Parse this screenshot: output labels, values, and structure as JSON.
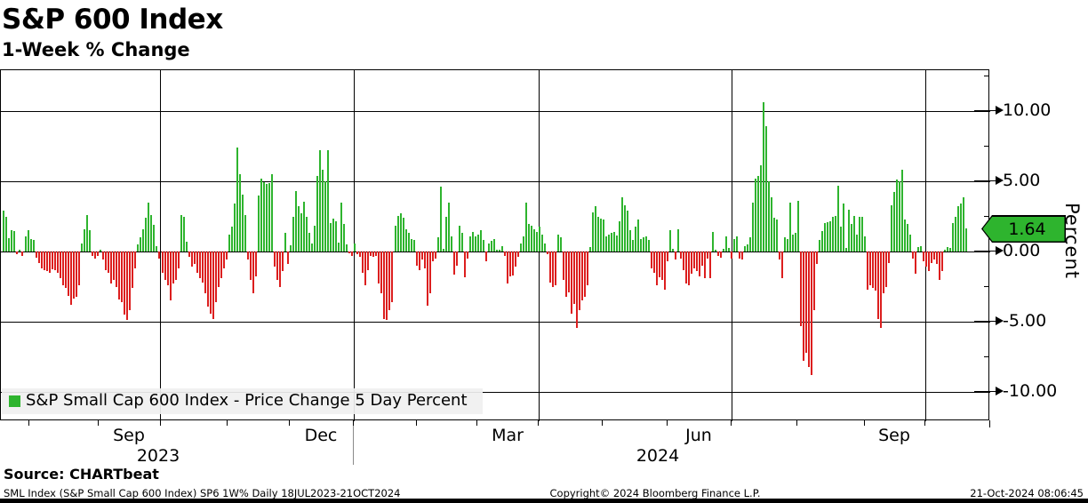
{
  "header": {
    "title": "S&P 600 Index",
    "subtitle": "1-Week % Change"
  },
  "legend": {
    "label": "S&P Small Cap 600 Index - Price Change 5 Day Percent"
  },
  "source_line": "Source: CHARTbeat",
  "footer": {
    "left": "SML Index (S&P Small Cap 600 Index) SP6 1W%  Daily 18JUL2023-21OCT2024",
    "center": "Copyright© 2024 Bloomberg Finance L.P.",
    "right": "21-Oct-2024 08:06:45"
  },
  "y_axis": {
    "label": "Percent",
    "major_ticks": [
      {
        "value": 10,
        "label": "10.00"
      },
      {
        "value": 5,
        "label": "5.00"
      },
      {
        "value": 0,
        "label": "0.00"
      },
      {
        "value": -5,
        "label": "-5.00"
      },
      {
        "value": -10,
        "label": "-10.00"
      }
    ],
    "minor_tick_values": [
      12.5,
      7.5,
      2.5,
      -2.5,
      -7.5
    ],
    "last_value_badge": "1.64"
  },
  "x_axis": {
    "month_labels": [
      {
        "label": "Sep",
        "x": 145
      },
      {
        "label": "Dec",
        "x": 361
      },
      {
        "label": "Mar",
        "x": 571
      },
      {
        "label": "Jun",
        "x": 786
      },
      {
        "label": "Sep",
        "x": 1006
      }
    ],
    "year_labels": [
      {
        "label": "2023",
        "x": 178
      },
      {
        "label": "2024",
        "x": 740
      }
    ],
    "month_tick_x": [
      32,
      110,
      180,
      255,
      325,
      397,
      468,
      536,
      605,
      677,
      750,
      822,
      896,
      972,
      1040
    ],
    "quarter_grid_x": [
      179,
      397,
      605,
      822,
      1040
    ],
    "year_separator_x": 397
  },
  "chart_data": {
    "type": "bar",
    "title": "S&P 600 Index",
    "subtitle": "1-Week % Change",
    "series_name": "S&P Small Cap 600 Index - Price Change 5 Day Percent",
    "frequency": "Daily",
    "date_range": "18JUL2023-21OCT2024",
    "ylabel": "Percent",
    "ylim": [
      -12.5,
      12.5
    ],
    "y_ticks": [
      10,
      5,
      0,
      -5,
      -10
    ],
    "grid": true,
    "legend_position": "bottom-left",
    "last_value": 1.64,
    "colors": {
      "positive": "#2eb42e",
      "negative": "#dc1e1e",
      "badge": "#2eb42e",
      "legend_bg": "#f0f0f0"
    },
    "bars_format": "[x_px_from_Jul18_2023_to_Oct21_2024, percent_change]",
    "bars": [
      [
        2,
        2.9
      ],
      [
        5,
        2.5
      ],
      [
        8,
        0.95
      ],
      [
        11,
        1.55
      ],
      [
        14,
        1.45
      ],
      [
        17,
        -0.2
      ],
      [
        20,
        0.15
      ],
      [
        23,
        -0.3
      ],
      [
        27,
        1.1
      ],
      [
        30,
        1.5
      ],
      [
        33,
        0.9
      ],
      [
        36,
        0.85
      ],
      [
        39,
        -0.45
      ],
      [
        42,
        -0.8
      ],
      [
        45,
        -1.2
      ],
      [
        48,
        -1.35
      ],
      [
        51,
        -1.4
      ],
      [
        54,
        -1.5
      ],
      [
        57,
        -1.25
      ],
      [
        60,
        -1.35
      ],
      [
        63,
        -1.55
      ],
      [
        66,
        -1.9
      ],
      [
        69,
        -2.4
      ],
      [
        72,
        -2.6
      ],
      [
        75,
        -3.15
      ],
      [
        78,
        -3.8
      ],
      [
        81,
        -3.35
      ],
      [
        84,
        -3.2
      ],
      [
        87,
        -2.4
      ],
      [
        90,
        0.6
      ],
      [
        93,
        1.6
      ],
      [
        96,
        2.6
      ],
      [
        99,
        1.5
      ],
      [
        102,
        -0.3
      ],
      [
        105,
        -0.5
      ],
      [
        108,
        -0.3
      ],
      [
        111,
        0.1
      ],
      [
        114,
        -0.6
      ],
      [
        117,
        -1.3
      ],
      [
        120,
        -1.5
      ],
      [
        123,
        -2.3
      ],
      [
        126,
        -2.0
      ],
      [
        129,
        -2.5
      ],
      [
        132,
        -3.4
      ],
      [
        135,
        -3.6
      ],
      [
        138,
        -4.5
      ],
      [
        141,
        -4.9
      ],
      [
        144,
        -4.2
      ],
      [
        147,
        -2.6
      ],
      [
        150,
        -1.2
      ],
      [
        153,
        0.5
      ],
      [
        156,
        1.0
      ],
      [
        159,
        1.6
      ],
      [
        162,
        2.4
      ],
      [
        165,
        3.5
      ],
      [
        168,
        2.6
      ],
      [
        171,
        1.9
      ],
      [
        174,
        0.4
      ],
      [
        177,
        -0.5
      ],
      [
        181,
        -1.55
      ],
      [
        184,
        -2.0
      ],
      [
        187,
        -2.4
      ],
      [
        190,
        -3.5
      ],
      [
        193,
        -2.3
      ],
      [
        196,
        -2.0
      ],
      [
        199,
        -1.2
      ],
      [
        202,
        2.6
      ],
      [
        205,
        2.5
      ],
      [
        208,
        0.7
      ],
      [
        211,
        -0.4
      ],
      [
        214,
        -1.1
      ],
      [
        217,
        -0.9
      ],
      [
        220,
        -1.5
      ],
      [
        223,
        -1.9
      ],
      [
        226,
        -2.2
      ],
      [
        229,
        -3.0
      ],
      [
        232,
        -3.9
      ],
      [
        235,
        -4.4
      ],
      [
        238,
        -4.8
      ],
      [
        241,
        -3.6
      ],
      [
        244,
        -2.5
      ],
      [
        247,
        -1.9
      ],
      [
        250,
        -1.2
      ],
      [
        253,
        -0.6
      ],
      [
        256,
        1.2
      ],
      [
        259,
        1.8
      ],
      [
        262,
        3.4
      ],
      [
        265,
        7.4
      ],
      [
        268,
        5.5
      ],
      [
        271,
        4.05
      ],
      [
        274,
        2.6
      ],
      [
        277,
        -0.6
      ],
      [
        280,
        -2.0
      ],
      [
        283,
        -3.0
      ],
      [
        286,
        -1.8
      ],
      [
        289,
        4.0
      ],
      [
        292,
        5.2
      ],
      [
        295,
        4.95
      ],
      [
        298,
        4.8
      ],
      [
        301,
        4.9
      ],
      [
        304,
        5.5
      ],
      [
        307,
        -1.1
      ],
      [
        310,
        -2.0
      ],
      [
        313,
        -2.5
      ],
      [
        316,
        -1.4
      ],
      [
        319,
        1.35
      ],
      [
        322,
        -0.9
      ],
      [
        325,
        0.45
      ],
      [
        328,
        2.5
      ],
      [
        331,
        4.3
      ],
      [
        334,
        3.2
      ],
      [
        337,
        2.7
      ],
      [
        340,
        3.55
      ],
      [
        343,
        2.5
      ],
      [
        346,
        1.3
      ],
      [
        349,
        0.6
      ],
      [
        352,
        1.85
      ],
      [
        355,
        5.4
      ],
      [
        358,
        7.2
      ],
      [
        361,
        5.85
      ],
      [
        364,
        5.0
      ],
      [
        367,
        7.2
      ],
      [
        370,
        2.05
      ],
      [
        373,
        2.35
      ],
      [
        376,
        2.15
      ],
      [
        379,
        0.65
      ],
      [
        382,
        3.45
      ],
      [
        385,
        1.95
      ],
      [
        388,
        0.5
      ],
      [
        391,
        -0.15
      ],
      [
        394,
        -0.3
      ],
      [
        397,
        0.55
      ],
      [
        400,
        -0.2
      ],
      [
        403,
        -0.4
      ],
      [
        406,
        -1.5
      ],
      [
        409,
        -2.4
      ],
      [
        412,
        -1.3
      ],
      [
        415,
        -0.3
      ],
      [
        418,
        -0.35
      ],
      [
        421,
        -0.3
      ],
      [
        424,
        -2.3
      ],
      [
        427,
        -3.0
      ],
      [
        430,
        -4.8
      ],
      [
        433,
        -4.9
      ],
      [
        436,
        -4.2
      ],
      [
        439,
        -3.6
      ],
      [
        443,
        1.85
      ],
      [
        446,
        2.55
      ],
      [
        449,
        2.7
      ],
      [
        452,
        2.4
      ],
      [
        455,
        1.6
      ],
      [
        458,
        1.3
      ],
      [
        461,
        0.9
      ],
      [
        464,
        0.8
      ],
      [
        467,
        -1.0
      ],
      [
        470,
        -1.3
      ],
      [
        473,
        -0.6
      ],
      [
        476,
        -1.2
      ],
      [
        479,
        -3.85
      ],
      [
        482,
        -3.0
      ],
      [
        485,
        -0.7
      ],
      [
        488,
        -0.5
      ],
      [
        491,
        1.0
      ],
      [
        494,
        4.6
      ],
      [
        497,
        0.2
      ],
      [
        500,
        2.45
      ],
      [
        503,
        3.5
      ],
      [
        506,
        1.05
      ],
      [
        509,
        -1.65
      ],
      [
        512,
        -1.0
      ],
      [
        515,
        1.85
      ],
      [
        518,
        1.35
      ],
      [
        521,
        -1.85
      ],
      [
        524,
        -0.5
      ],
      [
        527,
        1.1
      ],
      [
        530,
        1.4
      ],
      [
        533,
        1.05
      ],
      [
        536,
        1.2
      ],
      [
        539,
        1.5
      ],
      [
        542,
        0.8
      ],
      [
        545,
        -0.7
      ],
      [
        548,
        0.55
      ],
      [
        551,
        0.75
      ],
      [
        554,
        0.9
      ],
      [
        557,
        0.15
      ],
      [
        560,
        0.1
      ],
      [
        563,
        0.4
      ],
      [
        566,
        -0.3
      ],
      [
        569,
        -2.3
      ],
      [
        572,
        -1.75
      ],
      [
        575,
        -1.7
      ],
      [
        578,
        -1.1
      ],
      [
        581,
        -0.4
      ],
      [
        584,
        0.55
      ],
      [
        587,
        1.1
      ],
      [
        590,
        3.5
      ],
      [
        593,
        1.95
      ],
      [
        596,
        1.85
      ],
      [
        599,
        1.6
      ],
      [
        602,
        1.4
      ],
      [
        605,
        1.75
      ],
      [
        608,
        1.2
      ],
      [
        611,
        0.6
      ],
      [
        614,
        -0.2
      ],
      [
        617,
        -2.2
      ],
      [
        620,
        -2.5
      ],
      [
        623,
        -2.4
      ],
      [
        626,
        1.2
      ],
      [
        629,
        1.0
      ],
      [
        632,
        -2.0
      ],
      [
        635,
        -3.2
      ],
      [
        638,
        -2.9
      ],
      [
        641,
        -4.4
      ],
      [
        644,
        -3.75
      ],
      [
        647,
        -5.45
      ],
      [
        650,
        -4.2
      ],
      [
        653,
        -3.45
      ],
      [
        656,
        -3.2
      ],
      [
        659,
        -2.4
      ],
      [
        662,
        0.3
      ],
      [
        665,
        2.8
      ],
      [
        668,
        3.2
      ],
      [
        671,
        2.45
      ],
      [
        674,
        2.35
      ],
      [
        677,
        2.25
      ],
      [
        680,
        1.1
      ],
      [
        683,
        1.2
      ],
      [
        686,
        1.3
      ],
      [
        689,
        1.4
      ],
      [
        692,
        1.15
      ],
      [
        695,
        2.15
      ],
      [
        698,
        3.85
      ],
      [
        701,
        3.3
      ],
      [
        704,
        2.9
      ],
      [
        707,
        1.5
      ],
      [
        710,
        0.8
      ],
      [
        713,
        1.75
      ],
      [
        716,
        2.25
      ],
      [
        719,
        0.9
      ],
      [
        722,
        1.0
      ],
      [
        725,
        1.1
      ],
      [
        728,
        0.8
      ],
      [
        731,
        -1.2
      ],
      [
        734,
        -1.55
      ],
      [
        737,
        -2.4
      ],
      [
        740,
        -1.85
      ],
      [
        743,
        -2.0
      ],
      [
        746,
        -2.7
      ],
      [
        749,
        -0.7
      ],
      [
        752,
        1.5
      ],
      [
        755,
        0.2
      ],
      [
        758,
        -0.6
      ],
      [
        761,
        1.6
      ],
      [
        764,
        -0.5
      ],
      [
        767,
        -1.3
      ],
      [
        770,
        -2.3
      ],
      [
        773,
        -2.4
      ],
      [
        776,
        -1.6
      ],
      [
        779,
        -1.2
      ],
      [
        782,
        -1.4
      ],
      [
        785,
        -1.8
      ],
      [
        788,
        -1.0
      ],
      [
        791,
        -1.9
      ],
      [
        794,
        -0.5
      ],
      [
        797,
        -1.9
      ],
      [
        800,
        1.4
      ],
      [
        803,
        0.1
      ],
      [
        806,
        -0.3
      ],
      [
        809,
        -0.45
      ],
      [
        812,
        0.2
      ],
      [
        815,
        1.1
      ],
      [
        818,
        0.25
      ],
      [
        821,
        -0.5
      ],
      [
        824,
        0.9
      ],
      [
        827,
        1.1
      ],
      [
        830,
        -0.5
      ],
      [
        833,
        -0.6
      ],
      [
        836,
        0.4
      ],
      [
        839,
        0.5
      ],
      [
        842,
        1.0
      ],
      [
        845,
        3.5
      ],
      [
        848,
        5.2
      ],
      [
        851,
        5.4
      ],
      [
        854,
        6.15
      ],
      [
        857,
        10.65
      ],
      [
        860,
        8.9
      ],
      [
        863,
        5.0
      ],
      [
        866,
        3.85
      ],
      [
        869,
        2.4
      ],
      [
        872,
        2.25
      ],
      [
        875,
        -0.6
      ],
      [
        878,
        -1.9
      ],
      [
        881,
        1.0
      ],
      [
        884,
        0.9
      ],
      [
        887,
        3.5
      ],
      [
        890,
        1.2
      ],
      [
        893,
        1.35
      ],
      [
        896,
        3.6
      ],
      [
        899,
        -5.3
      ],
      [
        902,
        -7.8
      ],
      [
        905,
        -7.2
      ],
      [
        908,
        -8.2
      ],
      [
        911,
        -8.8
      ],
      [
        914,
        -4.2
      ],
      [
        917,
        -0.9
      ],
      [
        920,
        0.8
      ],
      [
        923,
        1.45
      ],
      [
        926,
        2.05
      ],
      [
        929,
        2.1
      ],
      [
        932,
        2.15
      ],
      [
        935,
        2.45
      ],
      [
        938,
        2.55
      ],
      [
        941,
        4.7
      ],
      [
        944,
        1.75
      ],
      [
        947,
        3.4
      ],
      [
        950,
        0.25
      ],
      [
        953,
        3.0
      ],
      [
        956,
        1.95
      ],
      [
        959,
        2.55
      ],
      [
        962,
        1.2
      ],
      [
        965,
        2.45
      ],
      [
        968,
        2.5
      ],
      [
        971,
        1.1
      ],
      [
        974,
        -2.7
      ],
      [
        977,
        -2.4
      ],
      [
        980,
        -2.6
      ],
      [
        983,
        -2.8
      ],
      [
        986,
        -4.8
      ],
      [
        989,
        -5.45
      ],
      [
        992,
        -3.0
      ],
      [
        995,
        -2.5
      ],
      [
        998,
        -0.8
      ],
      [
        1001,
        3.3
      ],
      [
        1004,
        4.25
      ],
      [
        1007,
        5.15
      ],
      [
        1010,
        5.0
      ],
      [
        1013,
        5.85
      ],
      [
        1016,
        2.25
      ],
      [
        1019,
        1.95
      ],
      [
        1022,
        1.2
      ],
      [
        1025,
        -0.5
      ],
      [
        1028,
        -1.6
      ],
      [
        1031,
        0.3
      ],
      [
        1034,
        0.4
      ],
      [
        1037,
        -0.7
      ],
      [
        1040,
        -1.1
      ],
      [
        1043,
        -1.4
      ],
      [
        1046,
        -0.8
      ],
      [
        1049,
        -0.6
      ],
      [
        1052,
        -0.9
      ],
      [
        1055,
        -2.0
      ],
      [
        1058,
        -1.4
      ],
      [
        1061,
        0.15
      ],
      [
        1064,
        0.3
      ],
      [
        1067,
        0.25
      ],
      [
        1070,
        2.05
      ],
      [
        1073,
        2.45
      ],
      [
        1076,
        3.2
      ],
      [
        1079,
        3.4
      ],
      [
        1082,
        3.85
      ],
      [
        1085,
        1.64
      ]
    ]
  }
}
